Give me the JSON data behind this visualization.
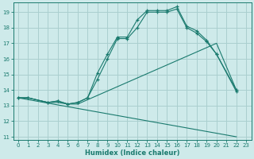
{
  "xlabel": "Humidex (Indice chaleur)",
  "bg_color": "#ceeaea",
  "grid_color": "#aacfcf",
  "line_color": "#1a7a6e",
  "xlim": [
    -0.5,
    23.5
  ],
  "ylim": [
    10.8,
    19.6
  ],
  "yticks": [
    11,
    12,
    13,
    14,
    15,
    16,
    17,
    18,
    19
  ],
  "xticks": [
    0,
    1,
    2,
    3,
    4,
    5,
    6,
    7,
    8,
    9,
    10,
    11,
    12,
    13,
    14,
    15,
    16,
    17,
    18,
    19,
    20,
    21,
    22,
    23
  ],
  "lines": [
    {
      "x": [
        0,
        22
      ],
      "y": [
        13.5,
        11.0
      ],
      "markers": false
    },
    {
      "x": [
        0,
        1,
        3,
        4,
        5,
        6,
        20,
        22
      ],
      "y": [
        13.5,
        13.5,
        13.2,
        13.2,
        13.1,
        13.1,
        17.0,
        14.0
      ],
      "markers": false
    },
    {
      "x": [
        0,
        1,
        3,
        4,
        5,
        6,
        7,
        8,
        9,
        10,
        11,
        12,
        13,
        14,
        15,
        16,
        17,
        18,
        19,
        20,
        22
      ],
      "y": [
        13.5,
        13.5,
        13.2,
        13.3,
        13.1,
        13.2,
        13.5,
        15.1,
        16.3,
        17.4,
        17.4,
        18.5,
        19.1,
        19.1,
        19.1,
        19.35,
        18.1,
        17.8,
        17.2,
        16.3,
        14.0
      ],
      "markers": true
    },
    {
      "x": [
        0,
        1,
        3,
        4,
        5,
        6,
        7,
        8,
        9,
        10,
        11,
        12,
        13,
        14,
        15,
        16,
        17,
        18,
        19,
        20,
        22
      ],
      "y": [
        13.5,
        13.5,
        13.2,
        13.3,
        13.1,
        13.2,
        13.5,
        14.7,
        16.0,
        17.3,
        17.3,
        18.0,
        19.0,
        19.0,
        19.0,
        19.2,
        18.0,
        17.65,
        17.1,
        16.3,
        13.9
      ],
      "markers": true
    }
  ]
}
